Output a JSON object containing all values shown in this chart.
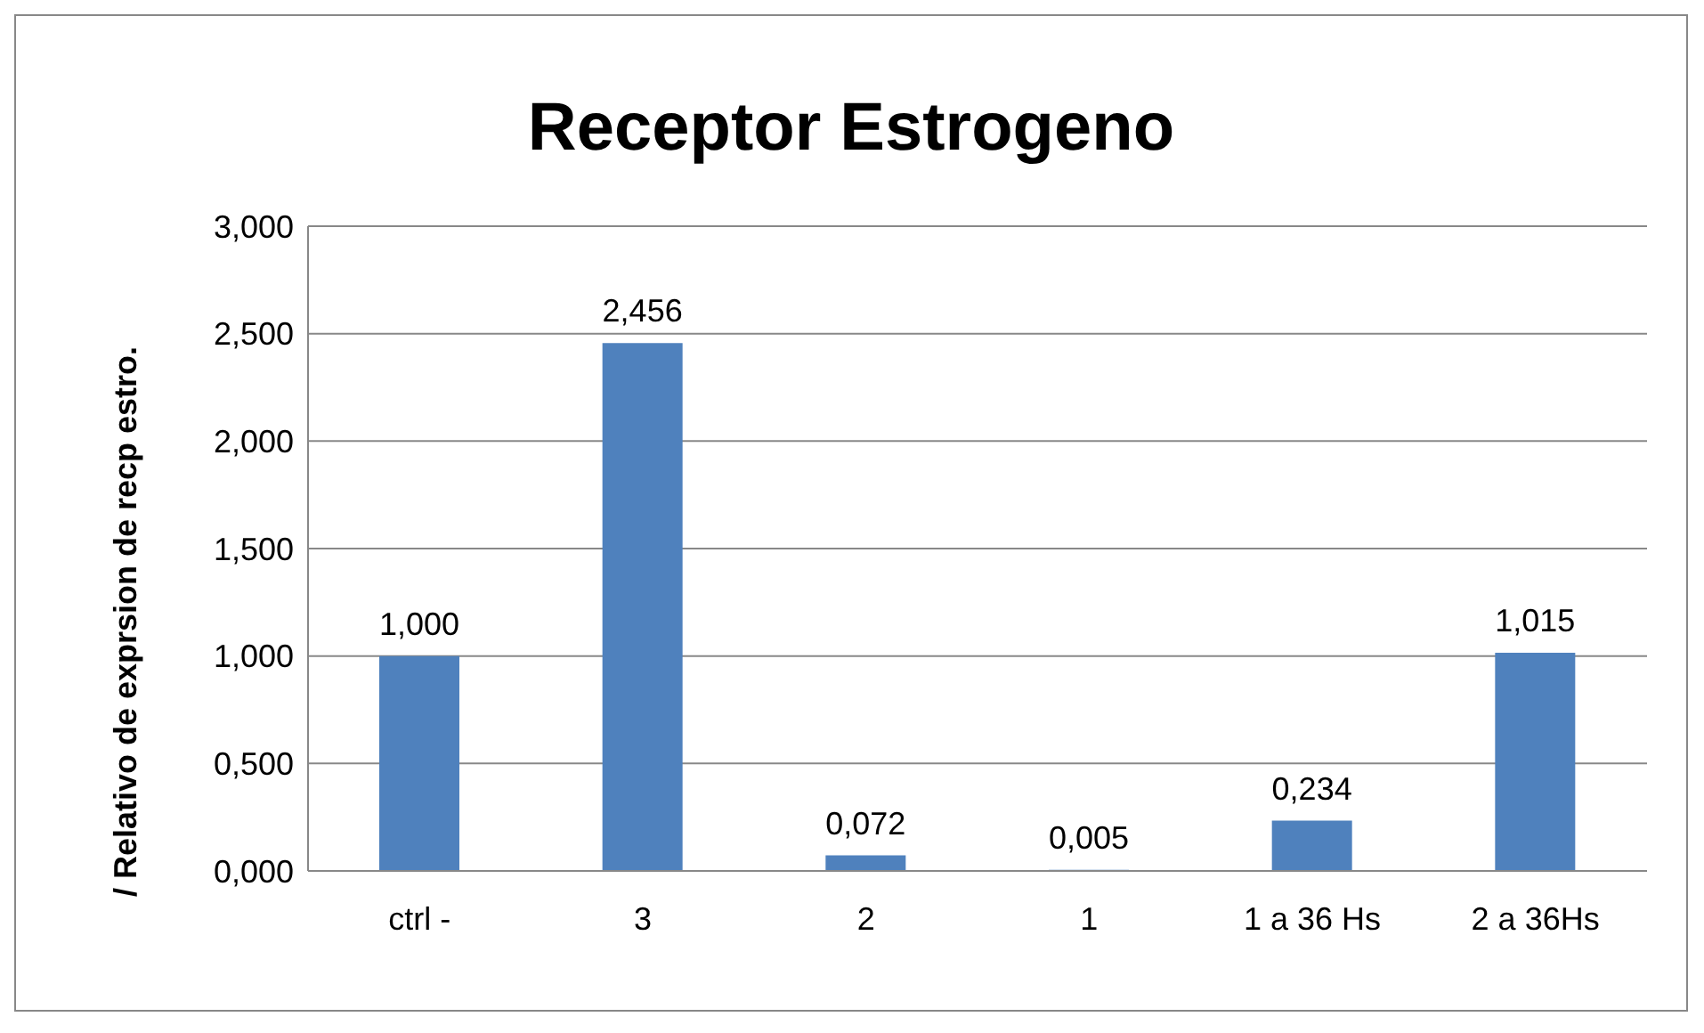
{
  "chart_data": {
    "type": "bar",
    "title": "Receptor Estrogeno",
    "ylabel": "/ Relativo de exprsion de recp estro.",
    "categories": [
      "ctrl -",
      "3",
      "2",
      "1",
      "1 a 36 Hs",
      "2 a 36Hs"
    ],
    "values": [
      1.0,
      2.456,
      0.072,
      0.005,
      0.234,
      1.015
    ],
    "value_labels": [
      "1,000",
      "2,456",
      "0,072",
      "0,005",
      "0,234",
      "1,015"
    ],
    "color": "#4f81bd",
    "ylim": [
      0,
      3
    ],
    "yticks": [
      {
        "value": 0,
        "label": "0,000"
      },
      {
        "value": 0.5,
        "label": "0,500"
      },
      {
        "value": 1,
        "label": "1,000"
      },
      {
        "value": 1.5,
        "label": "1,500"
      },
      {
        "value": 2,
        "label": "2,000"
      },
      {
        "value": 2.5,
        "label": "2,500"
      },
      {
        "value": 3,
        "label": "3,000"
      }
    ],
    "grid": "y",
    "legend": false
  }
}
